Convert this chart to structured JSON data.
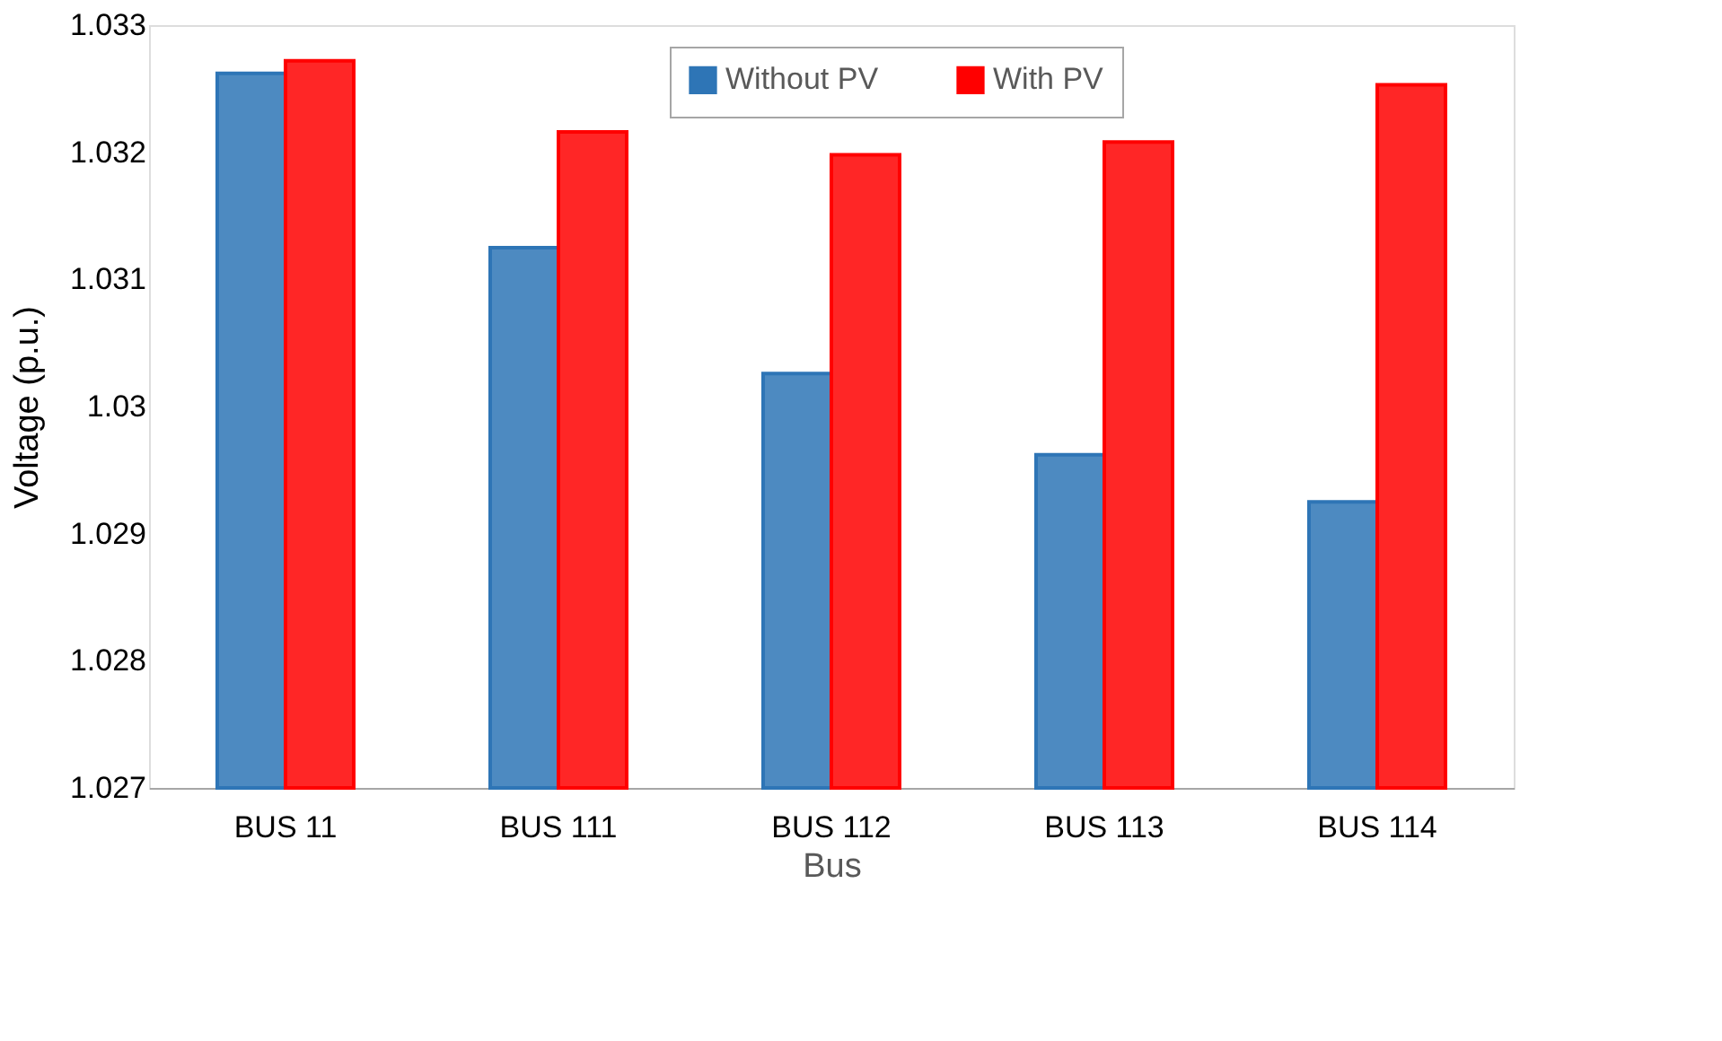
{
  "chart_data": {
    "type": "bar",
    "xlabel": "Bus",
    "ylabel": "Voltage (p.u.)",
    "categories": [
      "BUS 11",
      "BUS 111",
      "BUS 112",
      "BUS 113",
      "BUS 114"
    ],
    "series": [
      {
        "name": "Without PV",
        "color": "#2e75b6",
        "values": [
          1.03262,
          1.03125,
          1.03026,
          1.02962,
          1.02925
        ]
      },
      {
        "name": "With PV",
        "color": "#ff0000",
        "values": [
          1.03272,
          1.03216,
          1.03198,
          1.03208,
          1.03253
        ]
      }
    ],
    "ylim": [
      1.027,
      1.033
    ],
    "yticks": [
      1.027,
      1.028,
      1.029,
      {
        "value": 1.03,
        "label": "1.03"
      },
      1.031,
      1.032,
      1.033
    ],
    "grid": false,
    "legend": "top right"
  }
}
